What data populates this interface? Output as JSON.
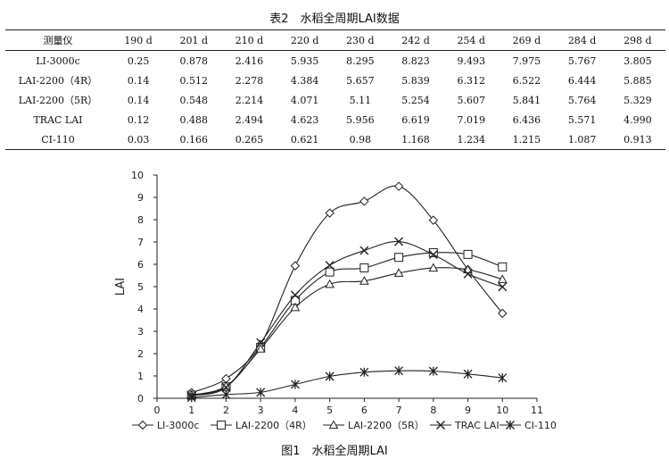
{
  "table": {
    "title": "表2　水稻全周期LAI数据",
    "header": [
      "测量仪",
      "190 d",
      "201 d",
      "210 d",
      "220 d",
      "230 d",
      "242 d",
      "254 d",
      "269 d",
      "284 d",
      "298 d"
    ],
    "rows": [
      [
        "LI-3000c",
        "0.25",
        "0.878",
        "2.416",
        "5.935",
        "8.295",
        "8.823",
        "9.493",
        "7.975",
        "5.767",
        "3.805"
      ],
      [
        "LAI-2200（4R）",
        "0.14",
        "0.512",
        "2.278",
        "4.384",
        "5.657",
        "5.839",
        "6.312",
        "6.522",
        "6.444",
        "5.885"
      ],
      [
        "LAI-2200（5R）",
        "0.14",
        "0.548",
        "2.214",
        "4.071",
        "5.11",
        "5.254",
        "5.607",
        "5.841",
        "5.764",
        "5.329"
      ],
      [
        "TRAC LAI",
        "0.12",
        "0.488",
        "2.494",
        "4.623",
        "5.956",
        "6.619",
        "7.019",
        "6.436",
        "5.571",
        "4.990"
      ],
      [
        "CI-110",
        "0.03",
        "0.166",
        "0.265",
        "0.621",
        "0.98",
        "1.168",
        "1.234",
        "1.215",
        "1.087",
        "0.913"
      ]
    ]
  },
  "chart_data": {
    "type": "line",
    "x": [
      1,
      2,
      3,
      4,
      5,
      6,
      7,
      8,
      9,
      10
    ],
    "xlim": [
      0,
      11
    ],
    "ylim": [
      0,
      10
    ],
    "xticks": [
      "0",
      "1",
      "2",
      "3",
      "4",
      "5",
      "6",
      "7",
      "8",
      "9",
      "10",
      "11"
    ],
    "yticks": [
      "0",
      "1",
      "2",
      "3",
      "4",
      "5",
      "6",
      "7",
      "8",
      "9",
      "10"
    ],
    "ylabel": "LAI",
    "xlabel": "",
    "grid": false,
    "legend_position": "bottom",
    "series": [
      {
        "name": "LI-3000c",
        "marker": "diamond",
        "values": [
          0.25,
          0.878,
          2.416,
          5.935,
          8.295,
          8.823,
          9.493,
          7.975,
          5.767,
          3.805
        ]
      },
      {
        "name": "LAI-2200（4R）",
        "marker": "square",
        "values": [
          0.14,
          0.512,
          2.278,
          4.384,
          5.657,
          5.839,
          6.312,
          6.522,
          6.444,
          5.885
        ]
      },
      {
        "name": "LAI-2200（5R）",
        "marker": "triangle",
        "values": [
          0.14,
          0.548,
          2.214,
          4.071,
          5.11,
          5.254,
          5.607,
          5.841,
          5.764,
          5.329
        ]
      },
      {
        "name": "TRAC LAI",
        "marker": "x",
        "values": [
          0.12,
          0.488,
          2.494,
          4.623,
          5.956,
          6.619,
          7.019,
          6.436,
          5.571,
          4.99
        ]
      },
      {
        "name": "CI-110",
        "marker": "asterisk",
        "values": [
          0.03,
          0.166,
          0.265,
          0.621,
          0.98,
          1.168,
          1.234,
          1.215,
          1.087,
          0.913
        ]
      }
    ]
  },
  "figure": {
    "caption": "图1　水稻全周期LAI"
  }
}
